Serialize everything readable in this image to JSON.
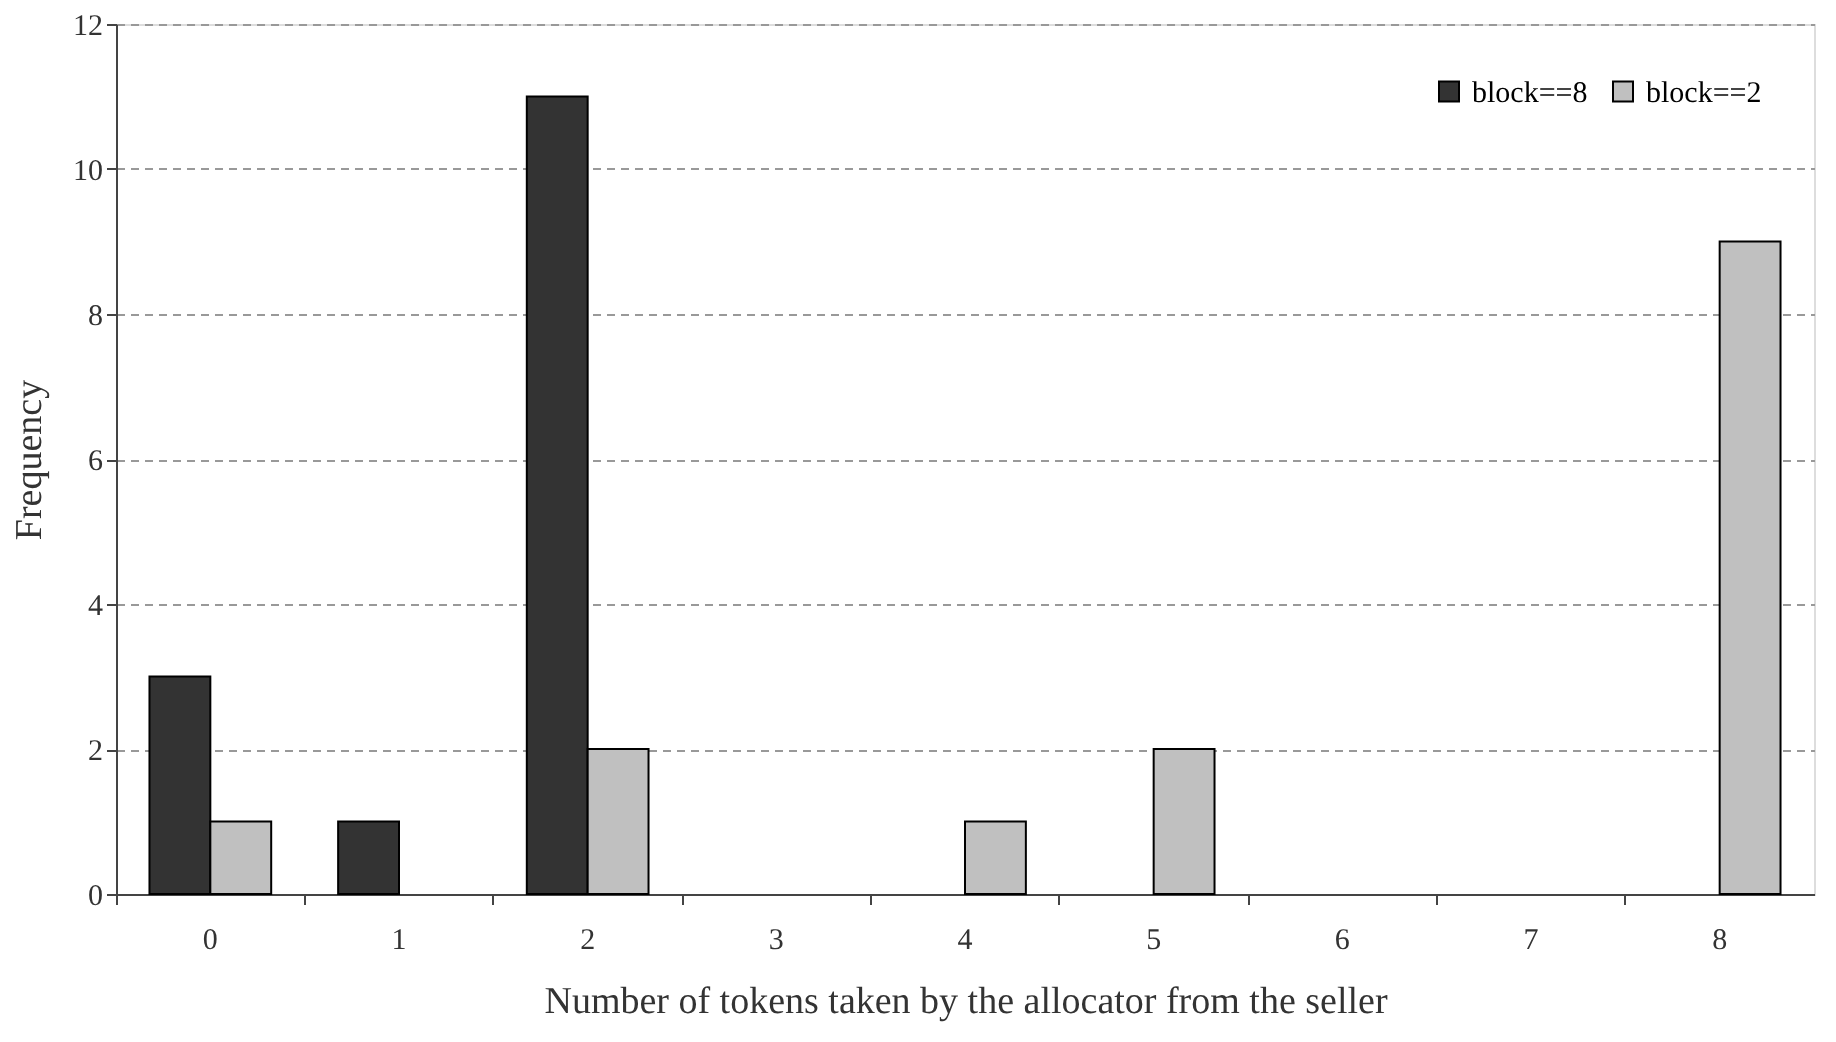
{
  "chart_data": {
    "type": "bar",
    "xlabel": "Number of tokens taken by the allocator from the seller",
    "ylabel": "Frequency",
    "categories": [
      "0",
      "1",
      "2",
      "3",
      "4",
      "5",
      "6",
      "7",
      "8"
    ],
    "series": [
      {
        "name": "block==8",
        "color": "#333333",
        "values": [
          3,
          1,
          11,
          null,
          null,
          null,
          null,
          null,
          null
        ]
      },
      {
        "name": "block==2",
        "color": "#c0c0c0",
        "values": [
          1,
          null,
          2,
          null,
          1,
          2,
          null,
          null,
          9
        ]
      }
    ],
    "ylim": [
      0,
      12
    ],
    "yticks": [
      0,
      2,
      4,
      6,
      8,
      10,
      12
    ],
    "grid": "y",
    "legend": "top right"
  }
}
